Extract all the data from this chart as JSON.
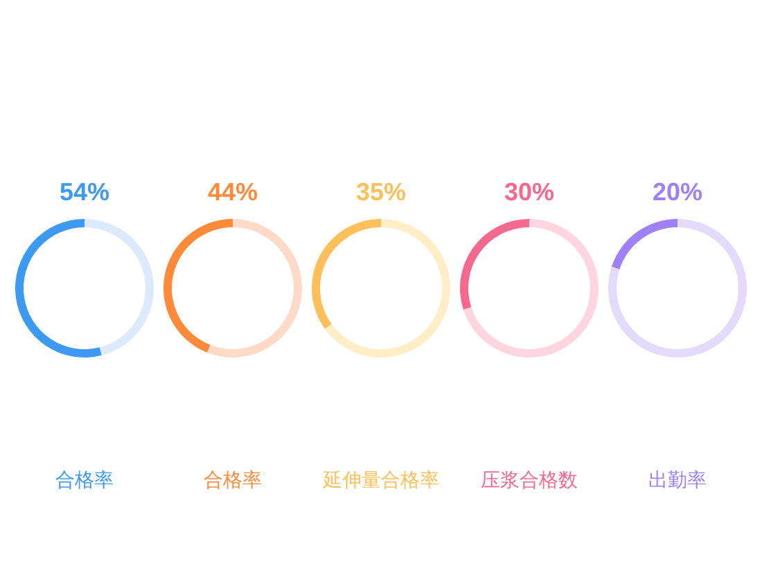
{
  "chart_data": [
    {
      "type": "donut",
      "title": "合格率",
      "categories": [
        null,
        null
      ],
      "values": [
        54,
        46
      ],
      "colors": [
        "#3d9af0",
        "#dde9fc"
      ],
      "value_labels": [
        "54%",
        null
      ]
    },
    {
      "type": "donut",
      "title": "合格率",
      "categories": [
        null,
        null
      ],
      "values": [
        44,
        56
      ],
      "colors": [
        "#ff8a3a",
        "#ffdac8"
      ],
      "value_labels": [
        "44%",
        null
      ]
    },
    {
      "type": "donut",
      "title": "延伸量合格率",
      "categories": [
        null,
        null
      ],
      "values": [
        35,
        65
      ],
      "colors": [
        "#ffbf5a",
        "#ffeec8"
      ],
      "value_labels": [
        "35%",
        null
      ]
    },
    {
      "type": "donut",
      "title": "压浆合格数",
      "categories": [
        null,
        null
      ],
      "values": [
        30,
        70
      ],
      "colors": [
        "#f5698f",
        "#ffd5e0"
      ],
      "value_labels": [
        "30%",
        null
      ]
    },
    {
      "type": "donut",
      "title": "出勤率",
      "categories": [
        null,
        null
      ],
      "values": [
        20,
        80
      ],
      "colors": [
        "#9f80f5",
        "#e3dafc"
      ],
      "value_labels": [
        "20%",
        null
      ]
    }
  ]
}
